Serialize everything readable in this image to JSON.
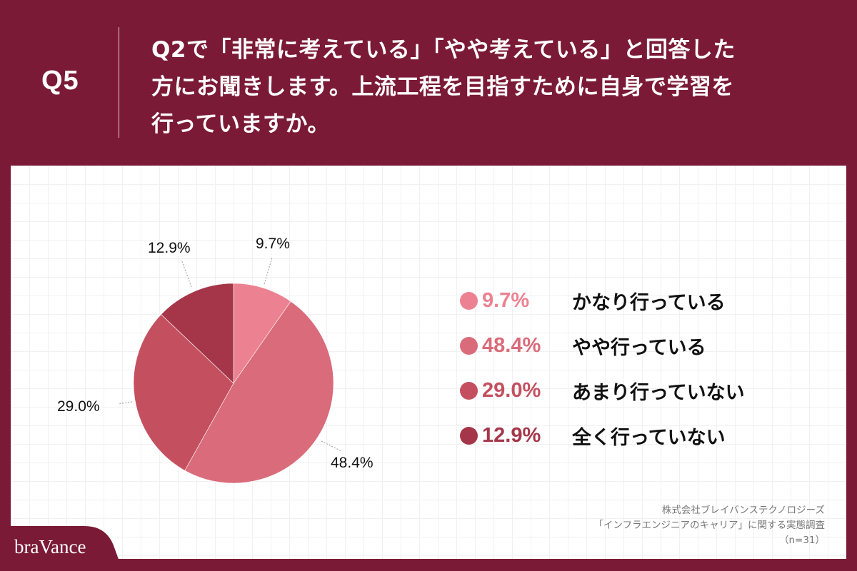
{
  "header": {
    "q_number": "Q5",
    "question_lines": [
      "Q2で「非常に考えている」「やや考えている」と回答した",
      "方にお聞きします。上流工程を目指すために自身で学習を",
      "行っていますか。"
    ]
  },
  "colors": {
    "background": "#7b1a36",
    "slice_1": "#ec8291",
    "slice_2": "#d96b7a",
    "slice_3": "#c4505f",
    "slice_4": "#a5364a"
  },
  "chart_data": {
    "type": "pie",
    "title": "上流工程を目指すために自身で学習を行っていますか。",
    "categories": [
      "かなり行っている",
      "やや行っている",
      "あまり行っていない",
      "全く行っていない"
    ],
    "values": [
      9.7,
      48.4,
      29.0,
      12.9
    ],
    "value_labels": [
      "9.7%",
      "48.4%",
      "29.0%",
      "12.9%"
    ],
    "colors": [
      "#ec8291",
      "#d96b7a",
      "#c4505f",
      "#a5364a"
    ],
    "start_angle": "12 o'clock",
    "direction": "clockwise",
    "legend_position": "right",
    "n": 31
  },
  "legend": [
    {
      "pct": "9.7%",
      "label": "かなり行っている",
      "color": "#ec8291"
    },
    {
      "pct": "48.4%",
      "label": "やや行っている",
      "color": "#d96b7a"
    },
    {
      "pct": "29.0%",
      "label": "あまり行っていない",
      "color": "#c4505f"
    },
    {
      "pct": "12.9%",
      "label": "全く行っていない",
      "color": "#a5364a"
    }
  ],
  "source": {
    "company": "株式会社ブレイバンステクノロジーズ",
    "survey": "「インフラエンジニアのキャリア」に関する実態調査",
    "sample": "（n=31）"
  },
  "logo": {
    "text": "braVance"
  }
}
